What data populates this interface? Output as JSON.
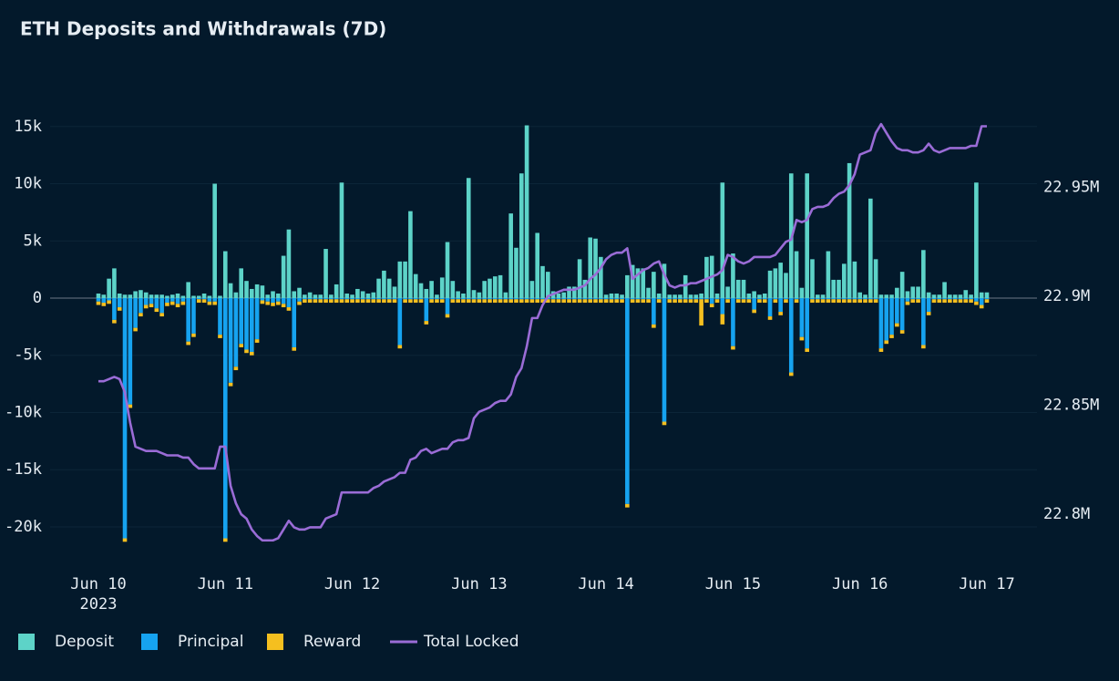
{
  "chart_data": {
    "type": "bar",
    "title": "ETH Deposits and Withdrawals (7D)",
    "categories": [
      "Jun 10",
      null,
      null,
      null,
      null,
      null,
      null,
      null,
      null,
      null,
      null,
      null,
      null,
      null,
      null,
      null,
      null,
      null,
      null,
      null,
      null,
      null,
      null,
      null,
      "Jun 11",
      null,
      null,
      null,
      null,
      null,
      null,
      null,
      null,
      null,
      null,
      null,
      null,
      null,
      null,
      null,
      null,
      null,
      null,
      null,
      null,
      null,
      null,
      null,
      "Jun 12",
      null,
      null,
      null,
      null,
      null,
      null,
      null,
      null,
      null,
      null,
      null,
      null,
      null,
      null,
      null,
      null,
      null,
      null,
      null,
      null,
      null,
      null,
      null,
      "Jun 13",
      null,
      null,
      null,
      null,
      null,
      null,
      null,
      null,
      null,
      null,
      null,
      null,
      null,
      null,
      null,
      null,
      null,
      null,
      null,
      null,
      null,
      null,
      null,
      "Jun 14",
      null,
      null,
      null,
      null,
      null,
      null,
      null,
      null,
      null,
      null,
      null,
      null,
      null,
      null,
      null,
      null,
      null,
      null,
      null,
      null,
      null,
      null,
      null,
      "Jun 15",
      null,
      null,
      null,
      null,
      null,
      null,
      null,
      null,
      null,
      null,
      null,
      null,
      null,
      null,
      null,
      null,
      null,
      null,
      null,
      null,
      null,
      null,
      null,
      "Jun 16",
      null,
      null,
      null,
      null,
      null,
      null,
      null,
      null,
      null,
      null,
      null,
      null,
      null,
      null,
      null,
      null,
      null,
      null,
      null,
      null,
      null,
      null,
      null,
      "Jun 17"
    ],
    "year_label": "2023",
    "ylim": [
      -23350,
      18090
    ],
    "yticks": [
      {
        "value": -20000,
        "label": "-20k"
      },
      {
        "value": -15000,
        "label": "-15k"
      },
      {
        "value": -10000,
        "label": "-10k"
      },
      {
        "value": -5000,
        "label": "-5k"
      },
      0,
      {
        "value": 5000,
        "label": "5k"
      },
      {
        "value": 10000,
        "label": "10k"
      },
      {
        "value": 15000,
        "label": "15k"
      }
    ],
    "y2lim": [
      22.7766,
      22.9941
    ],
    "y2ticks": [
      {
        "value": 22.8,
        "label": "22.8M"
      },
      {
        "value": 22.85,
        "label": "22.85M"
      },
      {
        "value": 22.9,
        "label": "22.9M"
      },
      {
        "value": 22.95,
        "label": "22.95M"
      }
    ],
    "grid": true,
    "legend": "bottom-left",
    "series": [
      {
        "name": "Deposit",
        "color": "#5dd3c8",
        "stack": "up",
        "values": [
          400,
          300,
          1700,
          2600,
          400,
          300,
          300,
          600,
          700,
          500,
          300,
          300,
          300,
          200,
          300,
          400,
          200,
          1400,
          200,
          200,
          400,
          200,
          10000,
          200,
          4100,
          1300,
          500,
          2600,
          1500,
          800,
          1200,
          1100,
          300,
          600,
          400,
          3700,
          6000,
          600,
          900,
          300,
          500,
          300,
          300,
          4300,
          300,
          1200,
          10100,
          400,
          300,
          800,
          600,
          400,
          500,
          1700,
          2400,
          1700,
          1000,
          3200,
          3200,
          7600,
          2100,
          1300,
          800,
          1500,
          300,
          1800,
          4900,
          1500,
          600,
          400,
          10500,
          700,
          500,
          1500,
          1700,
          1900,
          2000,
          500,
          7400,
          4400,
          10900,
          15100,
          1500,
          5700,
          2800,
          2300,
          600,
          400,
          500,
          1000,
          1000,
          3400,
          1600,
          5300,
          5200,
          3600,
          300,
          400,
          400,
          300,
          2000,
          2900,
          2600,
          2600,
          900,
          2300,
          400,
          3000,
          300,
          300,
          300,
          2000,
          300,
          300,
          400,
          3600,
          3700,
          400,
          10100,
          1000,
          3900,
          1600,
          1600,
          400,
          600,
          300,
          400,
          2400,
          2600,
          3100,
          2200,
          10900,
          4100,
          900,
          10900,
          3400,
          300,
          300,
          4100,
          1600,
          1600,
          3000,
          11800,
          3200,
          500,
          300,
          8700,
          3400,
          300,
          300,
          300,
          900,
          2300,
          600,
          1000,
          1000,
          4200,
          500,
          300,
          300,
          1400,
          300,
          300,
          300,
          700,
          300,
          10100,
          500,
          500
        ]
      },
      {
        "name": "Principal",
        "color": "#16a3f0",
        "stack": "down",
        "values": [
          -300,
          -400,
          -200,
          -1900,
          -800,
          -21000,
          -9300,
          -2600,
          -1300,
          -600,
          -500,
          -900,
          -1300,
          -400,
          -300,
          -500,
          -300,
          -3800,
          -3100,
          -100,
          -100,
          -300,
          -300,
          -3200,
          -21000,
          -7400,
          -6000,
          -4000,
          -4500,
          -4700,
          -3600,
          -200,
          -300,
          -400,
          -300,
          -500,
          -800,
          -4300,
          -300,
          -100,
          -100,
          -100,
          -100,
          -100,
          -100,
          -100,
          -100,
          -100,
          -100,
          -100,
          -100,
          -100,
          -100,
          -100,
          -100,
          -100,
          -100,
          -4100,
          -100,
          -100,
          -100,
          -100,
          -2000,
          -100,
          -100,
          -100,
          -1400,
          -100,
          -100,
          -100,
          -100,
          -100,
          -100,
          -100,
          -100,
          -100,
          -100,
          -100,
          -100,
          -100,
          -100,
          -100,
          -100,
          -100,
          -100,
          -100,
          -100,
          -100,
          -100,
          -100,
          -100,
          -100,
          -100,
          -100,
          -100,
          -100,
          -100,
          -100,
          -100,
          -100,
          -18000,
          -100,
          -100,
          -100,
          -100,
          -2300,
          -100,
          -10800,
          -100,
          -100,
          -100,
          -100,
          -100,
          -100,
          -100,
          -100,
          -500,
          -100,
          -1400,
          -100,
          -4200,
          -100,
          -100,
          -100,
          -1000,
          -100,
          -100,
          -1600,
          -100,
          -1200,
          -100,
          -6500,
          -100,
          -3400,
          -4400,
          -100,
          -100,
          -100,
          -100,
          -100,
          -100,
          -100,
          -100,
          -100,
          -100,
          -100,
          -100,
          -100,
          -4400,
          -3700,
          -3200,
          -2200,
          -2800,
          -300,
          -100,
          -100,
          -4100,
          -1200,
          -100,
          -100,
          -100,
          -100,
          -100,
          -100,
          -100,
          -100,
          -300,
          -600,
          -100
        ]
      },
      {
        "name": "Reward",
        "color": "#f5bf1f",
        "stack": "down",
        "values": [
          -300,
          -300,
          -300,
          -300,
          -300,
          -300,
          -300,
          -300,
          -300,
          -300,
          -300,
          -300,
          -300,
          -300,
          -300,
          -300,
          -300,
          -300,
          -300,
          -300,
          -300,
          -300,
          -300,
          -300,
          -300,
          -300,
          -300,
          -300,
          -300,
          -300,
          -300,
          -300,
          -300,
          -300,
          -300,
          -300,
          -300,
          -300,
          -300,
          -300,
          -300,
          -300,
          -300,
          -300,
          -300,
          -300,
          -300,
          -300,
          -300,
          -300,
          -300,
          -300,
          -300,
          -300,
          -300,
          -300,
          -300,
          -300,
          -300,
          -300,
          -300,
          -300,
          -300,
          -300,
          -300,
          -300,
          -300,
          -300,
          -300,
          -300,
          -300,
          -300,
          -300,
          -300,
          -300,
          -300,
          -300,
          -300,
          -300,
          -300,
          -300,
          -300,
          -300,
          -300,
          -300,
          -300,
          -300,
          -300,
          -300,
          -300,
          -300,
          -300,
          -300,
          -300,
          -300,
          -300,
          -300,
          -300,
          -300,
          -300,
          -300,
          -300,
          -300,
          -300,
          -300,
          -300,
          -300,
          -300,
          -300,
          -300,
          -300,
          -300,
          -300,
          -300,
          -2300,
          -300,
          -300,
          -300,
          -900,
          -300,
          -300,
          -300,
          -300,
          -300,
          -300,
          -300,
          -300,
          -300,
          -300,
          -300,
          -300,
          -300,
          -300,
          -300,
          -300,
          -300,
          -300,
          -300,
          -300,
          -300,
          -300,
          -300,
          -300,
          -300,
          -300,
          -300,
          -300,
          -300,
          -300,
          -300,
          -300,
          -300,
          -300,
          -300,
          -300,
          -300,
          -300,
          -300,
          -300,
          -300,
          -300,
          -300,
          -300,
          -300,
          -300,
          -300,
          -300,
          -300,
          -300
        ]
      },
      {
        "name": "Total Locked",
        "color": "#9a6cd6",
        "type": "line",
        "axis": "y2",
        "values": [
          22.861,
          22.861,
          22.862,
          22.863,
          22.862,
          22.856,
          22.842,
          22.831,
          22.83,
          22.829,
          22.829,
          22.829,
          22.828,
          22.827,
          22.827,
          22.827,
          22.826,
          22.826,
          22.823,
          22.821,
          22.821,
          22.821,
          22.821,
          22.831,
          22.831,
          22.813,
          22.805,
          22.8,
          22.798,
          22.793,
          22.79,
          22.788,
          22.788,
          22.788,
          22.789,
          22.793,
          22.797,
          22.794,
          22.793,
          22.793,
          22.794,
          22.794,
          22.794,
          22.798,
          22.799,
          22.8,
          22.81,
          22.81,
          22.81,
          22.81,
          22.81,
          22.81,
          22.812,
          22.813,
          22.815,
          22.816,
          22.817,
          22.819,
          22.819,
          22.825,
          22.826,
          22.829,
          22.83,
          22.828,
          22.829,
          22.83,
          22.83,
          22.833,
          22.834,
          22.834,
          22.835,
          22.844,
          22.847,
          22.848,
          22.849,
          22.851,
          22.852,
          22.852,
          22.855,
          22.863,
          22.867,
          22.877,
          22.89,
          22.89,
          22.896,
          22.9,
          22.901,
          22.902,
          22.903,
          22.903,
          22.903,
          22.904,
          22.905,
          22.908,
          22.91,
          22.913,
          22.917,
          22.919,
          22.92,
          22.92,
          22.922,
          22.908,
          22.91,
          22.912,
          22.913,
          22.915,
          22.916,
          22.91,
          22.905,
          22.904,
          22.905,
          22.905,
          22.906,
          22.906,
          22.907,
          22.908,
          22.909,
          22.91,
          22.912,
          22.919,
          22.918,
          22.916,
          22.915,
          22.916,
          22.918,
          22.918,
          22.918,
          22.918,
          22.919,
          22.922,
          22.925,
          22.926,
          22.935,
          22.934,
          22.935,
          22.94,
          22.941,
          22.941,
          22.942,
          22.945,
          22.947,
          22.948,
          22.951,
          22.956,
          22.965,
          22.966,
          22.967,
          22.975,
          22.979,
          22.975,
          22.971,
          22.968,
          22.967,
          22.967,
          22.966,
          22.966,
          22.967,
          22.97,
          22.967,
          22.966,
          22.967,
          22.968,
          22.968,
          22.968,
          22.968,
          22.969,
          22.969,
          22.978,
          22.978
        ]
      }
    ]
  }
}
